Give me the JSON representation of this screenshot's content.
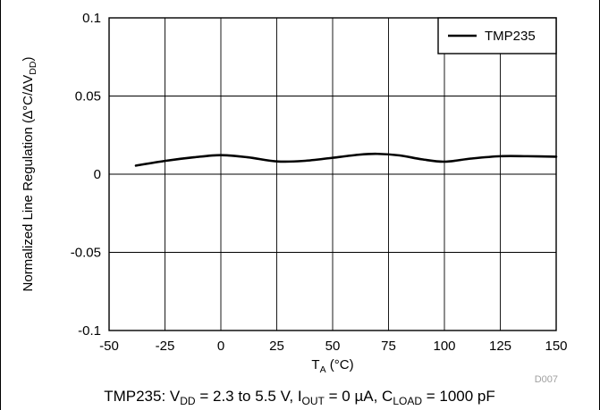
{
  "chart_data": {
    "type": "line",
    "x": [
      -38,
      -25,
      -12,
      0,
      12,
      25,
      37,
      50,
      62,
      70,
      80,
      90,
      100,
      112,
      125,
      137,
      150
    ],
    "series": [
      {
        "name": "TMP235",
        "values": [
          0.0055,
          0.0085,
          0.0108,
          0.0122,
          0.0108,
          0.0082,
          0.0085,
          0.0105,
          0.0125,
          0.013,
          0.012,
          0.0095,
          0.008,
          0.01,
          0.0115,
          0.0115,
          0.0112
        ]
      }
    ],
    "xlim": [
      -50,
      150
    ],
    "ylim": [
      -0.1,
      0.1
    ],
    "xticks": [
      -50,
      -25,
      0,
      25,
      50,
      75,
      100,
      125,
      150
    ],
    "xtick_labels": [
      "-50",
      "-25",
      "0",
      "25",
      "50",
      "75",
      "100",
      "125",
      "150"
    ],
    "yticks": [
      -0.1,
      -0.05,
      0,
      0.05,
      0.1
    ],
    "ytick_labels": [
      "-0.1",
      "-0.05",
      "0",
      "0.05",
      "0.1"
    ],
    "xlabel": {
      "main": "T",
      "sub": "A",
      "rest": " (°C)"
    },
    "ylabel": {
      "main": "Normalized Line Regulation (∆°C/∆V",
      "sub": "DD",
      "rest": ")"
    },
    "grid": true,
    "legend_position": "top-right",
    "annotation": "D007"
  },
  "caption": {
    "p1": "TMP235: V",
    "s1": "DD",
    "p2": " = 2.3 to 5.5 V, I",
    "s2": "OUT",
    "p3": " = 0 µA, C",
    "s3": "LOAD",
    "p4": " = 1000 pF"
  },
  "colors": {
    "line": "#000000",
    "grid": "#000000",
    "background": "#ffffff",
    "annotation": "#a0a0a0"
  }
}
